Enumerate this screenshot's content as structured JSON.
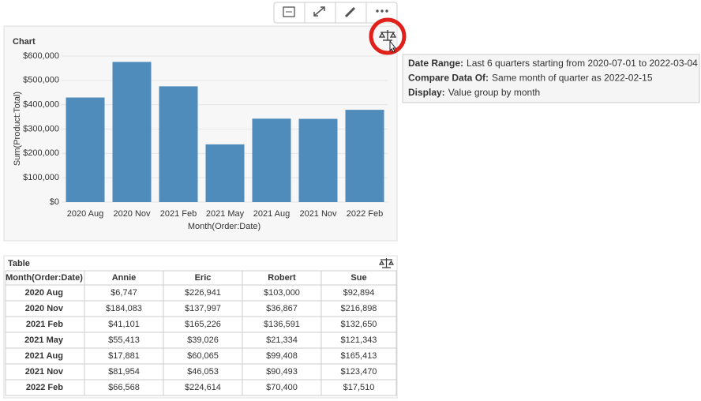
{
  "chart_data": {
    "type": "bar",
    "title": "Chart",
    "x_label": "Month(Order:Date)",
    "y_label": "Sum(Product:Total)",
    "categories": [
      "2020 Aug",
      "2020 Nov",
      "2021 Feb",
      "2021 May",
      "2021 Aug",
      "2021 Nov",
      "2022 Feb"
    ],
    "values": [
      429582,
      575845,
      475568,
      237116,
      342767,
      341970,
      379092
    ],
    "color": "#4f8cbc",
    "ylim": [
      0,
      600000
    ],
    "yticks": [
      {
        "value": 0,
        "label": "$0"
      },
      {
        "value": 100000,
        "label": "$100,000"
      },
      {
        "value": 200000,
        "label": "$200,000"
      },
      {
        "value": 300000,
        "label": "$300,000"
      },
      {
        "value": 400000,
        "label": "$400,000"
      },
      {
        "value": 500000,
        "label": "$500,000"
      },
      {
        "value": 600000,
        "label": "$600,000"
      }
    ],
    "grid": true
  },
  "tooltip": {
    "lines": [
      {
        "label": "Date Range:",
        "text": "Last 6 quarters starting from 2020-07-01 to 2022-03-04"
      },
      {
        "label": "Compare Data Of:",
        "text": "Same month of quarter as 2022-02-15"
      },
      {
        "label": "Display:",
        "text": "Value group by month"
      }
    ]
  },
  "table": {
    "title": "Table",
    "columns": [
      "Month(Order:Date)",
      "Annie",
      "Eric",
      "Robert",
      "Sue"
    ],
    "rows": [
      [
        "2020 Aug",
        "$6,747",
        "$226,941",
        "$103,000",
        "$92,894"
      ],
      [
        "2020 Nov",
        "$184,083",
        "$137,997",
        "$36,867",
        "$216,898"
      ],
      [
        "2021 Feb",
        "$41,101",
        "$165,226",
        "$136,591",
        "$132,650"
      ],
      [
        "2021 May",
        "$55,413",
        "$39,026",
        "$21,334",
        "$121,343"
      ],
      [
        "2021 Aug",
        "$17,881",
        "$60,065",
        "$99,408",
        "$165,413"
      ],
      [
        "2021 Nov",
        "$81,954",
        "$46,053",
        "$90,493",
        "$123,470"
      ],
      [
        "2022 Feb",
        "$66,568",
        "$224,614",
        "$70,400",
        "$17,510"
      ]
    ]
  }
}
